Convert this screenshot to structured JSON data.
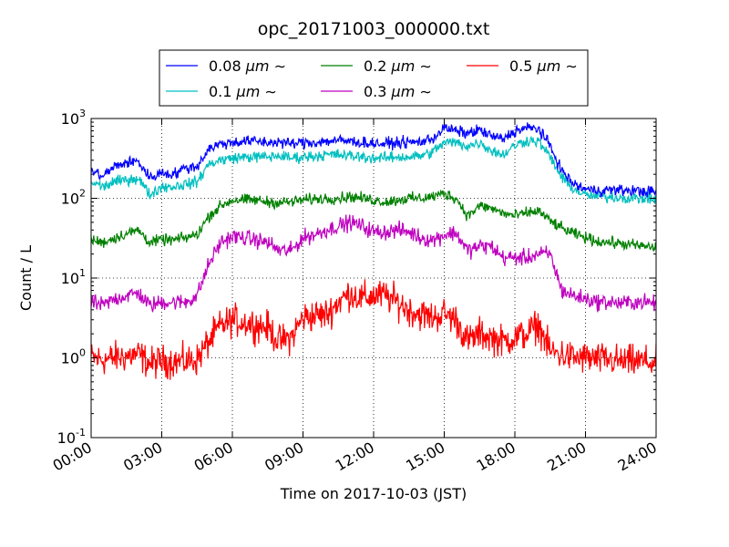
{
  "chart_data": {
    "type": "line",
    "title": "opc_20171003_000000.txt",
    "xlabel": "Time on 2017-10-03 (JST)",
    "ylabel": "Count / L",
    "x_ticks": [
      "00:00",
      "03:00",
      "06:00",
      "09:00",
      "12:00",
      "15:00",
      "18:00",
      "21:00",
      "24:00"
    ],
    "x_tick_hours": [
      0,
      3,
      6,
      9,
      12,
      15,
      18,
      21,
      24
    ],
    "xlim": [
      0,
      24
    ],
    "y_scale": "log",
    "ylim": [
      0.1,
      1000
    ],
    "y_ticks": [
      {
        "base": "10",
        "exp": "-1",
        "value": 0.1
      },
      {
        "base": "10",
        "exp": "0",
        "value": 1
      },
      {
        "base": "10",
        "exp": "1",
        "value": 10
      },
      {
        "base": "10",
        "exp": "2",
        "value": 100
      },
      {
        "base": "10",
        "exp": "3",
        "value": 1000
      }
    ],
    "grid": true,
    "legend_position": "top-center, above plot",
    "legend_unit": "μm",
    "legend_tilde": "∼",
    "series": [
      {
        "name": "0.08",
        "color": "#0000ff",
        "noise": 0.035,
        "x": [
          0,
          0.5,
          1,
          1.5,
          2,
          2.5,
          3,
          3.5,
          4,
          4.5,
          5,
          5.5,
          6,
          6.5,
          7,
          7.5,
          8,
          8.5,
          9,
          9.5,
          10,
          10.5,
          11,
          11.5,
          12,
          12.5,
          13,
          13.5,
          14,
          14.5,
          15,
          15.5,
          16,
          16.5,
          17,
          17.5,
          18,
          18.5,
          19,
          19.5,
          20,
          20.5,
          21,
          21.5,
          22,
          22.5,
          23,
          23.5,
          24
        ],
        "y": [
          220,
          190,
          250,
          280,
          290,
          180,
          210,
          200,
          240,
          250,
          420,
          480,
          500,
          520,
          520,
          500,
          510,
          480,
          500,
          500,
          520,
          530,
          520,
          500,
          490,
          480,
          500,
          500,
          510,
          560,
          760,
          700,
          650,
          720,
          600,
          550,
          700,
          760,
          750,
          450,
          220,
          150,
          130,
          125,
          128,
          126,
          125,
          122,
          120
        ]
      },
      {
        "name": "0.1",
        "color": "#00bfbf",
        "noise": 0.035,
        "x": [
          0,
          0.5,
          1,
          1.5,
          2,
          2.5,
          3,
          3.5,
          4,
          4.5,
          5,
          5.5,
          6,
          6.5,
          7,
          7.5,
          8,
          8.5,
          9,
          9.5,
          10,
          10.5,
          11,
          11.5,
          12,
          12.5,
          13,
          13.5,
          14,
          14.5,
          15,
          15.5,
          16,
          16.5,
          17,
          17.5,
          18,
          18.5,
          19,
          19.5,
          20,
          20.5,
          21,
          21.5,
          22,
          22.5,
          23,
          23.5,
          24
        ],
        "y": [
          160,
          140,
          160,
          170,
          180,
          110,
          140,
          140,
          150,
          160,
          270,
          300,
          320,
          330,
          330,
          330,
          340,
          320,
          330,
          340,
          350,
          350,
          340,
          330,
          320,
          320,
          330,
          330,
          340,
          380,
          500,
          500,
          450,
          500,
          400,
          350,
          460,
          530,
          520,
          330,
          180,
          130,
          110,
          105,
          104,
          102,
          100,
          100,
          98
        ]
      },
      {
        "name": "0.2",
        "color": "#008000",
        "noise": 0.035,
        "x": [
          0,
          0.5,
          1,
          1.5,
          2,
          2.5,
          3,
          3.5,
          4,
          4.5,
          5,
          5.5,
          6,
          6.5,
          7,
          7.5,
          8,
          8.5,
          9,
          9.5,
          10,
          10.5,
          11,
          11.5,
          12,
          12.5,
          13,
          13.5,
          14,
          14.5,
          15,
          15.5,
          16,
          16.5,
          17,
          17.5,
          18,
          18.5,
          19,
          19.5,
          20,
          20.5,
          21,
          21.5,
          22,
          22.5,
          23,
          23.5,
          24
        ],
        "y": [
          30,
          28,
          32,
          36,
          40,
          28,
          30,
          30,
          32,
          35,
          60,
          80,
          95,
          95,
          95,
          90,
          88,
          90,
          95,
          98,
          100,
          100,
          105,
          100,
          95,
          90,
          95,
          100,
          100,
          105,
          115,
          100,
          60,
          80,
          75,
          65,
          60,
          65,
          70,
          52,
          42,
          36,
          32,
          29,
          28,
          27,
          26,
          25,
          24
        ]
      },
      {
        "name": "0.3",
        "color": "#bf00bf",
        "noise": 0.05,
        "x": [
          0,
          0.5,
          1,
          1.5,
          2,
          2.5,
          3,
          3.5,
          4,
          4.5,
          5,
          5.5,
          6,
          6.5,
          7,
          7.5,
          8,
          8.5,
          9,
          9.5,
          10,
          10.5,
          11,
          11.5,
          12,
          12.5,
          13,
          13.5,
          14,
          14.5,
          15,
          15.5,
          16,
          16.5,
          17,
          17.5,
          18,
          18.5,
          19,
          19.5,
          20,
          20.5,
          21,
          21.5,
          22,
          22.5,
          23,
          23.5,
          24
        ],
        "y": [
          5,
          4.5,
          5.5,
          6,
          6.5,
          4.5,
          5,
          5,
          5,
          6,
          15,
          28,
          33,
          32,
          30,
          28,
          22,
          22,
          32,
          35,
          40,
          45,
          50,
          45,
          38,
          38,
          40,
          38,
          32,
          30,
          35,
          37,
          22,
          25,
          25,
          18,
          18,
          18,
          20,
          20,
          7,
          6,
          5.5,
          5,
          5,
          4.8,
          5,
          5,
          4.8
        ]
      },
      {
        "name": "0.5",
        "color": "#ff0000",
        "noise": 0.1,
        "x": [
          0,
          0.5,
          1,
          1.5,
          2,
          2.5,
          3,
          3.5,
          4,
          4.5,
          5,
          5.5,
          6,
          6.5,
          7,
          7.5,
          8,
          8.5,
          9,
          9.5,
          10,
          10.5,
          11,
          11.5,
          12,
          12.5,
          13,
          13.5,
          14,
          14.5,
          15,
          15.5,
          16,
          16.5,
          17,
          17.5,
          18,
          18.5,
          19,
          19.5,
          20,
          20.5,
          21,
          21.5,
          22,
          22.5,
          23,
          23.5,
          24
        ],
        "y": [
          1,
          0.95,
          1,
          1.05,
          1.1,
          0.85,
          0.9,
          0.9,
          0.9,
          0.95,
          1.6,
          2.5,
          3,
          2.8,
          2.6,
          2.4,
          1.6,
          1.8,
          3.2,
          3.4,
          3.5,
          5,
          6.5,
          5.5,
          6,
          6,
          5,
          4,
          3.5,
          3.2,
          3.6,
          3,
          1.6,
          2,
          1.8,
          1.6,
          1.8,
          2,
          2.6,
          1.2,
          1.1,
          1,
          1,
          0.95,
          0.95,
          0.9,
          0.9,
          0.9,
          0.85
        ]
      }
    ]
  }
}
